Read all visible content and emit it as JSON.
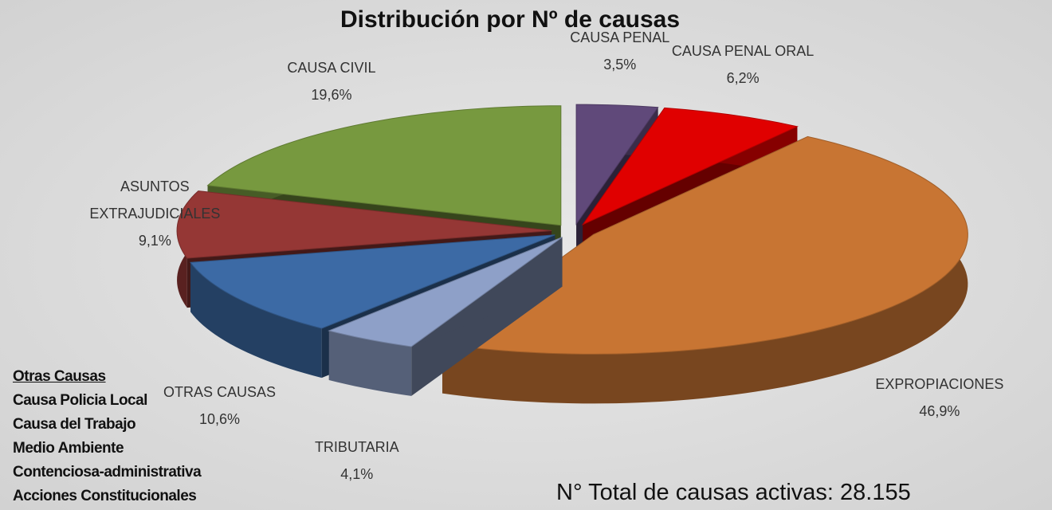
{
  "chart_data": {
    "type": "pie3d",
    "title": "Distribución por Nº de causas",
    "categories": [
      "CAUSA PENAL",
      "CAUSA PENAL ORAL",
      "EXPROPIACIONES",
      "TRIBUTARIA",
      "OTRAS CAUSAS",
      "ASUNTOS EXTRAJUDICIALES",
      "CAUSA CIVIL"
    ],
    "values": [
      3.5,
      6.2,
      46.9,
      4.1,
      10.6,
      9.1,
      19.6
    ],
    "value_labels": [
      "3,5%",
      "6,2%",
      "46,9%",
      "4,1%",
      "10,6%",
      "9,1%",
      "19,6%"
    ],
    "colors": [
      "#60497a",
      "#e00000",
      "#c87533",
      "#8ea0c8",
      "#3c6aa5",
      "#953735",
      "#77993f"
    ],
    "notes": {
      "title": "Otras Causas",
      "items": [
        "Causa Policia Local",
        "Causa del Trabajo",
        "Medio Ambiente",
        "Contenciosa-administrativa",
        "Acciones Constitucionales"
      ]
    },
    "total_label": "N° Total de causas activas: 28.155"
  }
}
